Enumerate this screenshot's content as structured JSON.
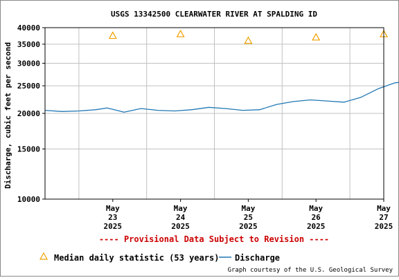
{
  "chart_data": {
    "type": "line",
    "title": "USGS 13342500 CLEARWATER RIVER AT SPALDING ID",
    "ylabel": "Discharge, cubic feet per second",
    "yscale": "log",
    "ylim": [
      10000,
      40000
    ],
    "y_ticks": [
      {
        "value": 10000,
        "label": "10000"
      },
      {
        "value": 15000,
        "label": "15000"
      },
      {
        "value": 20000,
        "label": "20000"
      },
      {
        "value": 25000,
        "label": "25000"
      },
      {
        "value": 30000,
        "label": "30000"
      },
      {
        "value": 35000,
        "label": "35000"
      },
      {
        "value": 40000,
        "label": "40000"
      }
    ],
    "x_start": "2025-05-22T12:00",
    "x_end": "2025-05-27T12:00",
    "x_ticks": [
      {
        "date": "2025-05-23",
        "month": "May",
        "day": "23",
        "year": "2025"
      },
      {
        "date": "2025-05-24",
        "month": "May",
        "day": "24",
        "year": "2025"
      },
      {
        "date": "2025-05-25",
        "month": "May",
        "day": "25",
        "year": "2025"
      },
      {
        "date": "2025-05-26",
        "month": "May",
        "day": "26",
        "year": "2025"
      },
      {
        "date": "2025-05-27",
        "month": "May",
        "day": "27",
        "year": "2025"
      }
    ],
    "grid": true,
    "series": [
      {
        "name": "Discharge",
        "color": "#1f77b4",
        "points": [
          {
            "t": "2025-05-22T12:00",
            "y": 20500
          },
          {
            "t": "2025-05-22T18:00",
            "y": 20300
          },
          {
            "t": "2025-05-23T00:00",
            "y": 20400
          },
          {
            "t": "2025-05-23T06:00",
            "y": 20600
          },
          {
            "t": "2025-05-23T10:00",
            "y": 20900
          },
          {
            "t": "2025-05-23T16:00",
            "y": 20200
          },
          {
            "t": "2025-05-23T22:00",
            "y": 20800
          },
          {
            "t": "2025-05-24T04:00",
            "y": 20500
          },
          {
            "t": "2025-05-24T10:00",
            "y": 20400
          },
          {
            "t": "2025-05-24T16:00",
            "y": 20600
          },
          {
            "t": "2025-05-24T22:00",
            "y": 21000
          },
          {
            "t": "2025-05-25T04:00",
            "y": 20800
          },
          {
            "t": "2025-05-25T10:00",
            "y": 20500
          },
          {
            "t": "2025-05-25T16:00",
            "y": 20600
          },
          {
            "t": "2025-05-25T22:00",
            "y": 21500
          },
          {
            "t": "2025-05-26T04:00",
            "y": 22000
          },
          {
            "t": "2025-05-26T10:00",
            "y": 22300
          },
          {
            "t": "2025-05-26T16:00",
            "y": 22100
          },
          {
            "t": "2025-05-26T22:00",
            "y": 21900
          },
          {
            "t": "2025-05-27T04:00",
            "y": 22800
          },
          {
            "t": "2025-05-27T10:00",
            "y": 24400
          },
          {
            "t": "2025-05-27T16:00",
            "y": 25600
          },
          {
            "t": "2025-05-27T22:00",
            "y": 26000
          },
          {
            "t": "2025-05-28T04:00",
            "y": 26000
          },
          {
            "t": "2025-05-28T08:00",
            "y": 25500
          }
        ]
      }
    ],
    "median_series": {
      "name": "Median daily statistic (53 years)",
      "color": "#f0a000",
      "points": [
        {
          "t": "2025-05-23T12:00",
          "y": 37500
        },
        {
          "t": "2025-05-24T12:00",
          "y": 38000
        },
        {
          "t": "2025-05-25T12:00",
          "y": 36000
        },
        {
          "t": "2025-05-26T12:00",
          "y": 37000
        },
        {
          "t": "2025-05-27T12:00",
          "y": 38000
        }
      ]
    }
  },
  "notices": {
    "provisional": "---- Provisional Data Subject to Revision ----",
    "credit": "Graph courtesy of the U.S. Geological Survey"
  },
  "legend": {
    "median_label": "Median daily statistic (53 years)",
    "discharge_label": "Discharge"
  },
  "colors": {
    "provisional": "#cc0000",
    "grid": "#c0c0c0"
  }
}
